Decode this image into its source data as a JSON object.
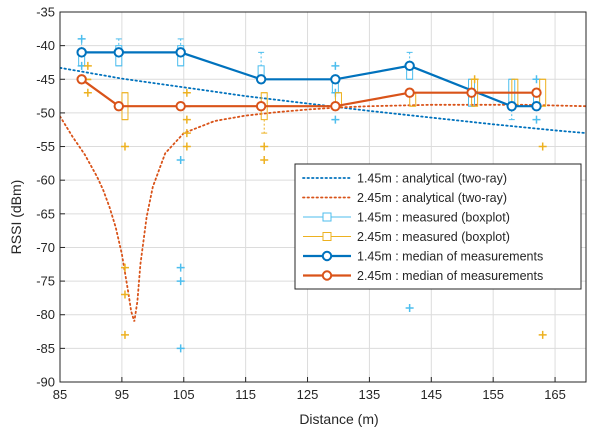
{
  "chart_data": {
    "type": "line",
    "xlabel": "Distance (m)",
    "ylabel": "RSSI (dBm)",
    "xlim": [
      85,
      170
    ],
    "ylim": [
      -90,
      -35
    ],
    "xticks": [
      85,
      95,
      105,
      115,
      125,
      135,
      145,
      155,
      165
    ],
    "yticks": [
      -90,
      -85,
      -80,
      -75,
      -70,
      -65,
      -60,
      -55,
      -50,
      -45,
      -40,
      -35
    ],
    "grid": true,
    "legend_position": "right",
    "colors": {
      "blue": "#0072BD",
      "orange": "#D95319",
      "light_blue": "#4DBEEE",
      "gold": "#EDB120"
    },
    "series": [
      {
        "name": "1.45m : analytical (two-ray)",
        "style": "dotted",
        "color": "#0072BD",
        "x": [
          85,
          95,
          105,
          115,
          125,
          135,
          145,
          155,
          165,
          170
        ],
        "y": [
          -43.3,
          -44.9,
          -46.2,
          -47.5,
          -48.6,
          -49.7,
          -50.7,
          -51.7,
          -52.6,
          -53.0
        ]
      },
      {
        "name": "2.45m : analytical (two-ray)",
        "style": "dotted",
        "color": "#D95319",
        "x": [
          85,
          87,
          89,
          91,
          92,
          93,
          94,
          95,
          96,
          96.5,
          97,
          97.5,
          98,
          99,
          100,
          102,
          105,
          110,
          115,
          120,
          125,
          130,
          135,
          140,
          145,
          150,
          155,
          160,
          165,
          170
        ],
        "y": [
          -50.5,
          -53.5,
          -56.2,
          -59.5,
          -61.5,
          -64.0,
          -67.0,
          -71.0,
          -76.5,
          -79.5,
          -81.0,
          -78.0,
          -72.5,
          -65.5,
          -61.0,
          -56.0,
          -53.0,
          -51.2,
          -50.4,
          -49.9,
          -49.5,
          -49.2,
          -49.0,
          -48.9,
          -48.8,
          -48.8,
          -48.8,
          -48.8,
          -48.9,
          -49.0
        ]
      },
      {
        "name": "1.45m : measured (boxplot)",
        "type": "boxplot",
        "color": "#4DBEEE",
        "boxes": [
          {
            "x": 88.5,
            "q1": -43,
            "q3": -41,
            "whisker_low": -43,
            "whisker_high": -39,
            "outliers": [
              -39,
              -43
            ]
          },
          {
            "x": 94.5,
            "q1": -43,
            "q3": -40,
            "whisker_low": -43,
            "whisker_high": -39,
            "outliers": []
          },
          {
            "x": 104.5,
            "q1": -43,
            "q3": -40,
            "whisker_low": -43,
            "whisker_high": -39,
            "outliers": [
              -57,
              -73,
              -75,
              -85
            ]
          },
          {
            "x": 117.5,
            "q1": -45,
            "q3": -43,
            "whisker_low": -45,
            "whisker_high": -41,
            "outliers": []
          },
          {
            "x": 129.5,
            "q1": -47,
            "q3": -45,
            "whisker_low": -49,
            "whisker_high": -45,
            "outliers": [
              -43,
              -47,
              -51
            ]
          },
          {
            "x": 141.5,
            "q1": -45,
            "q3": -43,
            "whisker_low": -45,
            "whisker_high": -41,
            "outliers": [
              -79
            ]
          },
          {
            "x": 151.5,
            "q1": -49,
            "q3": -45,
            "whisker_low": -49,
            "whisker_high": -45,
            "outliers": []
          },
          {
            "x": 158.0,
            "q1": -49,
            "q3": -45,
            "whisker_low": -51,
            "whisker_high": -45,
            "outliers": []
          },
          {
            "x": 162.0,
            "q1": -49,
            "q3": -47,
            "whisker_low": -49,
            "whisker_high": -47,
            "outliers": [
              -45,
              -51
            ]
          }
        ]
      },
      {
        "name": "2.45m : measured (boxplot)",
        "type": "boxplot",
        "color": "#EDB120",
        "boxes": [
          {
            "x": 89.5,
            "q1": -45,
            "q3": -45,
            "whisker_low": -45,
            "whisker_high": -45,
            "outliers": [
              -43,
              -47
            ]
          },
          {
            "x": 95.5,
            "q1": -51,
            "q3": -47,
            "whisker_low": -51,
            "whisker_high": -47,
            "outliers": [
              -55,
              -73,
              -77,
              -83
            ]
          },
          {
            "x": 105.5,
            "q1": -49,
            "q3": -49,
            "whisker_low": -49,
            "whisker_high": -49,
            "outliers": [
              -47,
              -51,
              -53,
              -55
            ]
          },
          {
            "x": 118.0,
            "q1": -51,
            "q3": -47,
            "whisker_low": -53,
            "whisker_high": -47,
            "outliers": [
              -55,
              -57
            ]
          },
          {
            "x": 130.0,
            "q1": -49,
            "q3": -47,
            "whisker_low": -49,
            "whisker_high": -47,
            "outliers": []
          },
          {
            "x": 142.0,
            "q1": -49,
            "q3": -47,
            "whisker_low": -49,
            "whisker_high": -47,
            "outliers": []
          },
          {
            "x": 152.0,
            "q1": -49,
            "q3": -45,
            "whisker_low": -49,
            "whisker_high": -45,
            "outliers": [
              -45
            ]
          },
          {
            "x": 158.5,
            "q1": -49,
            "q3": -45,
            "whisker_low": -49,
            "whisker_high": -45,
            "outliers": []
          },
          {
            "x": 163.0,
            "q1": -49,
            "q3": -45,
            "whisker_low": -49,
            "whisker_high": -45,
            "outliers": [
              -55,
              -83
            ]
          }
        ]
      },
      {
        "name": "1.45m : median of measurements",
        "style": "solid-marker",
        "color": "#0072BD",
        "x": [
          88.5,
          94.5,
          104.5,
          117.5,
          129.5,
          141.5,
          158.0,
          162.0
        ],
        "y": [
          -41,
          -41,
          -41,
          -45,
          -45,
          -43,
          -49,
          -49
        ]
      },
      {
        "name": "2.45m : median of measurements",
        "style": "solid-marker",
        "color": "#D95319",
        "x": [
          88.5,
          94.5,
          104.5,
          117.5,
          129.5,
          141.5,
          151.5,
          162.0
        ],
        "y": [
          -45,
          -49,
          -49,
          -49,
          -49,
          -47,
          -47,
          -47
        ]
      }
    ]
  }
}
